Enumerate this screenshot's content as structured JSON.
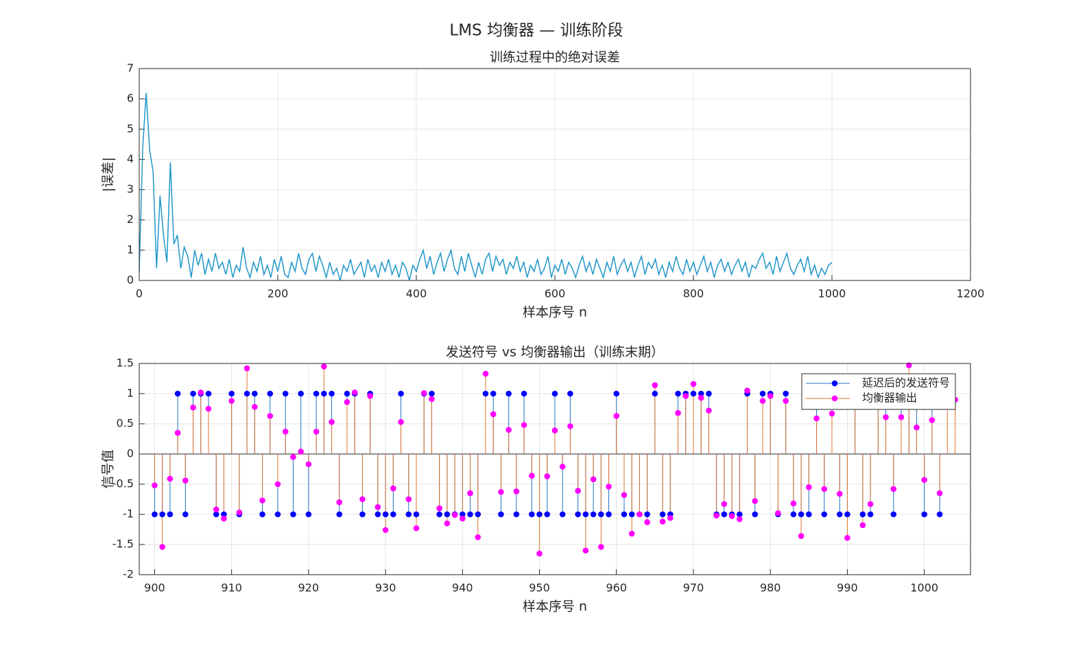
{
  "figure_title": "LMS 均衡器 — 训练阶段",
  "chart_data": [
    {
      "type": "line",
      "title": "训练过程中的绝对误差",
      "xlabel": "样本序号 n",
      "ylabel": "|误差|",
      "xlim": [
        0,
        1200
      ],
      "xticks": [
        0,
        200,
        400,
        600,
        800,
        1000,
        1200
      ],
      "ylim": [
        0,
        7
      ],
      "yticks": [
        0,
        1,
        2,
        3,
        4,
        5,
        6,
        7
      ],
      "grid": true,
      "x": [
        0,
        5,
        10,
        15,
        20,
        25,
        30,
        35,
        40,
        45,
        50,
        55,
        60,
        65,
        70,
        75,
        80,
        85,
        90,
        95,
        100,
        105,
        110,
        115,
        120,
        125,
        130,
        135,
        140,
        145,
        150,
        155,
        160,
        165,
        170,
        175,
        180,
        185,
        190,
        195,
        200,
        205,
        210,
        215,
        220,
        225,
        230,
        235,
        240,
        245,
        250,
        255,
        260,
        265,
        270,
        275,
        280,
        285,
        290,
        295,
        300,
        305,
        310,
        315,
        320,
        325,
        330,
        335,
        340,
        345,
        350,
        355,
        360,
        365,
        370,
        375,
        380,
        385,
        390,
        395,
        400,
        405,
        410,
        415,
        420,
        425,
        430,
        435,
        440,
        445,
        450,
        455,
        460,
        465,
        470,
        475,
        480,
        485,
        490,
        495,
        500,
        505,
        510,
        515,
        520,
        525,
        530,
        535,
        540,
        545,
        550,
        555,
        560,
        565,
        570,
        575,
        580,
        585,
        590,
        595,
        600,
        605,
        610,
        615,
        620,
        625,
        630,
        635,
        640,
        645,
        650,
        655,
        660,
        665,
        670,
        675,
        680,
        685,
        690,
        695,
        700,
        705,
        710,
        715,
        720,
        725,
        730,
        735,
        740,
        745,
        750,
        755,
        760,
        765,
        770,
        775,
        780,
        785,
        790,
        795,
        800,
        805,
        810,
        815,
        820,
        825,
        830,
        835,
        840,
        845,
        850,
        855,
        860,
        865,
        870,
        875,
        880,
        885,
        890,
        895,
        900,
        905,
        910,
        915,
        920,
        925,
        930,
        935,
        940,
        945,
        950,
        955,
        960,
        965,
        970,
        975,
        980,
        985,
        990,
        995,
        1000
      ],
      "series": [
        {
          "name": "|误差|",
          "color": "#1f96c8",
          "values": [
            0.3,
            4.4,
            6.2,
            4.3,
            3.6,
            0.4,
            2.8,
            1.5,
            0.6,
            3.9,
            1.2,
            1.5,
            0.4,
            1.1,
            0.8,
            0.1,
            1.0,
            0.5,
            0.9,
            0.2,
            0.7,
            0.3,
            0.9,
            0.4,
            0.6,
            0.2,
            0.7,
            0.1,
            0.5,
            0.3,
            1.1,
            0.4,
            0.1,
            0.6,
            0.3,
            0.8,
            0.2,
            0.5,
            0.1,
            0.7,
            0.3,
            0.8,
            0.2,
            0.1,
            0.6,
            0.3,
            0.9,
            0.4,
            0.2,
            0.7,
            0.9,
            0.3,
            0.8,
            0.5,
            0.1,
            0.6,
            0.2,
            0.4,
            0.0,
            0.5,
            0.3,
            0.7,
            0.2,
            0.4,
            0.6,
            0.1,
            0.7,
            0.3,
            0.5,
            0.1,
            0.6,
            0.3,
            0.7,
            0.2,
            0.5,
            0.1,
            0.6,
            0.4,
            0.0,
            0.5,
            0.3,
            0.7,
            1.0,
            0.4,
            0.8,
            0.2,
            0.6,
            0.9,
            0.3,
            0.7,
            1.0,
            0.4,
            0.2,
            0.8,
            0.3,
            0.9,
            0.5,
            0.1,
            0.6,
            0.2,
            0.7,
            0.9,
            0.3,
            0.8,
            0.5,
            0.7,
            0.2,
            0.6,
            0.4,
            0.8,
            0.3,
            0.6,
            0.1,
            0.5,
            0.3,
            0.7,
            0.2,
            0.4,
            0.8,
            0.1,
            0.5,
            0.3,
            0.7,
            0.2,
            0.6,
            0.4,
            0.1,
            0.5,
            0.8,
            0.3,
            0.6,
            0.2,
            0.7,
            0.4,
            0.1,
            0.6,
            0.3,
            0.8,
            0.2,
            0.5,
            0.7,
            0.3,
            0.6,
            0.1,
            0.5,
            0.8,
            0.2,
            0.6,
            0.4,
            0.7,
            0.2,
            0.5,
            0.1,
            0.6,
            0.3,
            0.8,
            0.4,
            0.2,
            0.7,
            0.3,
            0.6,
            0.2,
            0.5,
            0.8,
            0.3,
            0.6,
            0.1,
            0.5,
            0.7,
            0.3,
            0.6,
            0.2,
            0.5,
            0.7,
            0.3,
            0.6,
            0.1,
            0.5,
            0.4,
            0.7,
            0.9,
            0.4,
            0.6,
            0.2,
            0.8,
            0.3,
            0.6,
            0.9,
            0.4,
            0.2,
            0.5,
            0.7,
            0.3,
            0.8,
            0.2,
            0.5,
            0.1,
            0.4,
            0.2,
            0.5,
            0.6
          ]
        }
      ]
    },
    {
      "type": "stem",
      "title": "发送符号 vs 均衡器输出（训练末期）",
      "xlabel": "样本序号 n",
      "ylabel": "信号值",
      "xlim": [
        898,
        1006
      ],
      "xticks": [
        900,
        910,
        920,
        930,
        940,
        950,
        960,
        970,
        980,
        990,
        1000
      ],
      "ylim": [
        -2,
        1.5
      ],
      "yticks": [
        -2,
        -1.5,
        -1,
        -0.5,
        0,
        0.5,
        1,
        1.5
      ],
      "grid": true,
      "legend": "upper-right",
      "x": [
        900,
        901,
        902,
        903,
        904,
        905,
        906,
        907,
        908,
        909,
        910,
        911,
        912,
        913,
        914,
        915,
        916,
        917,
        918,
        919,
        920,
        921,
        922,
        923,
        924,
        925,
        926,
        927,
        928,
        929,
        930,
        931,
        932,
        933,
        934,
        935,
        936,
        937,
        938,
        939,
        940,
        941,
        942,
        943,
        944,
        945,
        946,
        947,
        948,
        949,
        950,
        951,
        952,
        953,
        954,
        955,
        956,
        957,
        958,
        959,
        960,
        961,
        962,
        963,
        964,
        965,
        966,
        967,
        968,
        969,
        970,
        971,
        972,
        973,
        974,
        975,
        976,
        977,
        978,
        979,
        980,
        981,
        982,
        983,
        984,
        985,
        986,
        987,
        988,
        989,
        990,
        991,
        992,
        993,
        994,
        995,
        996,
        997,
        998,
        999,
        1000,
        1001,
        1002,
        1003,
        1004
      ],
      "series": [
        {
          "name": "延迟后的发送符号",
          "color": "#1f6fc0",
          "marker_color": "#0000ff",
          "values": [
            -1,
            -1,
            -1,
            1,
            -1,
            1,
            1,
            1,
            -1,
            -1,
            1,
            -1,
            1,
            1,
            -1,
            1,
            -1,
            1,
            -1,
            1,
            -1,
            1,
            1,
            1,
            -1,
            1,
            1,
            -1,
            1,
            -1,
            -1,
            -1,
            1,
            -1,
            -1,
            1,
            1,
            -1,
            -1,
            -1,
            -1,
            -1,
            -1,
            1,
            1,
            -1,
            1,
            -1,
            1,
            -1,
            -1,
            -1,
            1,
            -1,
            1,
            -1,
            -1,
            -1,
            -1,
            -1,
            1,
            -1,
            -1,
            -1,
            -1,
            1,
            -1,
            -1,
            1,
            1,
            1,
            1,
            1,
            -1,
            -1,
            -1,
            -1,
            1,
            -1,
            1,
            1,
            -1,
            1,
            -1,
            -1,
            -1,
            1,
            -1,
            1,
            -1,
            -1,
            1,
            -1,
            -1,
            1,
            1,
            -1,
            1,
            1,
            1,
            -1,
            1,
            -1,
            null,
            null
          ]
        },
        {
          "name": "均衡器输出",
          "color": "#e0712c",
          "marker_color": "#ff00ff",
          "values": [
            -0.52,
            -1.54,
            -0.41,
            0.35,
            -0.44,
            0.77,
            1.02,
            0.75,
            -0.92,
            -1.07,
            0.88,
            -0.97,
            1.42,
            0.78,
            -0.77,
            0.63,
            -0.5,
            0.37,
            -0.05,
            0.04,
            -0.17,
            0.37,
            1.45,
            0.53,
            -0.8,
            0.86,
            1.02,
            -0.75,
            0.96,
            -0.88,
            -1.26,
            -0.57,
            0.53,
            -0.75,
            -1.23,
            1.01,
            0.91,
            -0.9,
            -1.15,
            -1.01,
            -1.07,
            -0.65,
            -1.38,
            1.33,
            0.66,
            -0.63,
            0.4,
            -0.62,
            0.48,
            -0.36,
            -1.65,
            -0.37,
            0.39,
            -0.21,
            0.46,
            -0.61,
            -1.6,
            -0.42,
            -1.54,
            -0.54,
            0.63,
            -0.68,
            -1.32,
            -1,
            -1.13,
            1.14,
            -1.12,
            -1.06,
            0.68,
            0.96,
            1.16,
            0.93,
            0.72,
            -1.02,
            -0.83,
            -1.03,
            -1.08,
            1.05,
            -0.78,
            0.88,
            0.96,
            -0.98,
            0.88,
            -0.82,
            -1.36,
            -0.55,
            0.59,
            -0.58,
            0.67,
            -0.66,
            -1.39,
            0.95,
            -1.18,
            -0.83,
            1,
            0.61,
            -0.58,
            0.61,
            1.47,
            0.44,
            -0.43,
            0.56,
            -0.65,
            0.9,
            0.9
          ]
        }
      ]
    }
  ]
}
